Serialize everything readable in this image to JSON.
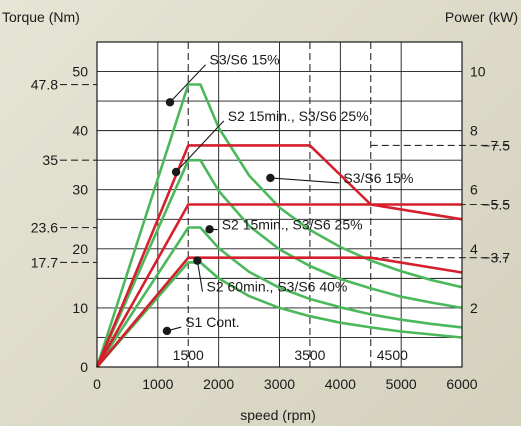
{
  "chart_data": {
    "type": "line",
    "xlabel": "speed (rpm)",
    "ylabel_left": "Torque (Nm)",
    "ylabel_right": "Power (kW)",
    "xlim": [
      0,
      6000
    ],
    "ylim_left": [
      0,
      55
    ],
    "ylim_right": [
      0,
      11
    ],
    "grid": true,
    "x_ticks": [
      0,
      1000,
      2000,
      3000,
      4000,
      5000,
      6000
    ],
    "y_left_ticks": [
      0,
      10,
      20,
      30,
      40,
      50
    ],
    "y_right_ticks": [
      2,
      4,
      6,
      8,
      10
    ],
    "x_inner_labels": [
      {
        "text": "1500",
        "value": 1500
      },
      {
        "text": "3500",
        "value": 3500
      },
      {
        "text": "4500",
        "value": 4500
      }
    ],
    "y_left_callouts": [
      {
        "text": "47.8",
        "value": 47.8
      },
      {
        "text": "35",
        "value": 35
      },
      {
        "text": "23.6",
        "value": 23.6
      },
      {
        "text": "17.7",
        "value": 17.7
      }
    ],
    "y_right_callouts": [
      {
        "text": "7.5",
        "value": 7.5
      },
      {
        "text": "5.5",
        "value": 5.5
      },
      {
        "text": "3.7",
        "value": 3.7
      }
    ],
    "series": [
      {
        "axis": "left",
        "color": "#4cb85c",
        "x": [
          0,
          1500,
          1700,
          2000,
          2500,
          3000,
          3500,
          4000,
          4500,
          5000,
          5500,
          6000
        ],
        "y": [
          0,
          47.8,
          47.8,
          40.5,
          32.4,
          27.0,
          23.2,
          20.3,
          18.0,
          16.2,
          14.7,
          13.5
        ]
      },
      {
        "axis": "left",
        "color": "#4cb85c",
        "x": [
          0,
          1500,
          1700,
          2000,
          2500,
          3000,
          3500,
          4000,
          4500,
          5000,
          5500,
          6000
        ],
        "y": [
          0,
          35,
          35,
          29.8,
          23.9,
          19.9,
          17.1,
          14.9,
          13.3,
          11.9,
          10.9,
          10.0
        ]
      },
      {
        "axis": "left",
        "color": "#4cb85c",
        "x": [
          0,
          1500,
          1700,
          2000,
          2500,
          3000,
          3500,
          4000,
          4500,
          5000,
          5500,
          6000
        ],
        "y": [
          0,
          23.6,
          23.6,
          20.1,
          16.1,
          13.4,
          11.5,
          10.1,
          8.9,
          8.0,
          7.3,
          6.7
        ]
      },
      {
        "axis": "left",
        "color": "#4cb85c",
        "x": [
          0,
          1500,
          1700,
          2000,
          2500,
          3000,
          3500,
          4000,
          4500,
          5000,
          5500,
          6000
        ],
        "y": [
          0,
          17.7,
          17.7,
          15.0,
          12.0,
          10.0,
          8.6,
          7.5,
          6.7,
          6.0,
          5.5,
          5.0
        ]
      },
      {
        "axis": "right",
        "color": "#d4202c",
        "x": [
          0,
          1500,
          3500,
          4500,
          6000
        ],
        "y": [
          0,
          7.5,
          7.5,
          5.5,
          5.5
        ]
      },
      {
        "axis": "right",
        "color": "#d4202c",
        "x": [
          0,
          1500,
          4500,
          6000
        ],
        "y": [
          0,
          5.5,
          5.5,
          5.0
        ]
      },
      {
        "axis": "right",
        "color": "#d4202c",
        "x": [
          0,
          1500,
          4500,
          6000
        ],
        "y": [
          0,
          3.7,
          3.7,
          3.2
        ]
      }
    ],
    "annotations": [
      {
        "text": "S3/S6 15%",
        "dot": [
          1200,
          44.8
        ],
        "label": [
          1850,
          52.0
        ]
      },
      {
        "text": "S2 15min., S3/S6 25%",
        "dot": [
          1300,
          33.0
        ],
        "label": [
          2150,
          42.5
        ]
      },
      {
        "text": "S3/S6 15%",
        "dot": [
          2850,
          32.0
        ],
        "label": [
          4050,
          32.0
        ]
      },
      {
        "text": "S2 15min., S3/S6 25%",
        "dot": [
          1850,
          23.3
        ],
        "label": [
          2050,
          24.1
        ]
      },
      {
        "text": "S2 60min., S3/S6 40%",
        "dot": [
          1650,
          18.0
        ],
        "label": [
          1800,
          13.6
        ]
      },
      {
        "text": "S1 Cont.",
        "dot": [
          1150,
          6.1
        ],
        "label": [
          1450,
          7.6
        ]
      }
    ],
    "dashed_guides": {
      "x": [
        1500,
        3500,
        4500
      ],
      "y_left": [
        47.8,
        35,
        23.6,
        17.7
      ],
      "y_right": [
        7.5,
        5.5,
        3.7
      ]
    }
  }
}
